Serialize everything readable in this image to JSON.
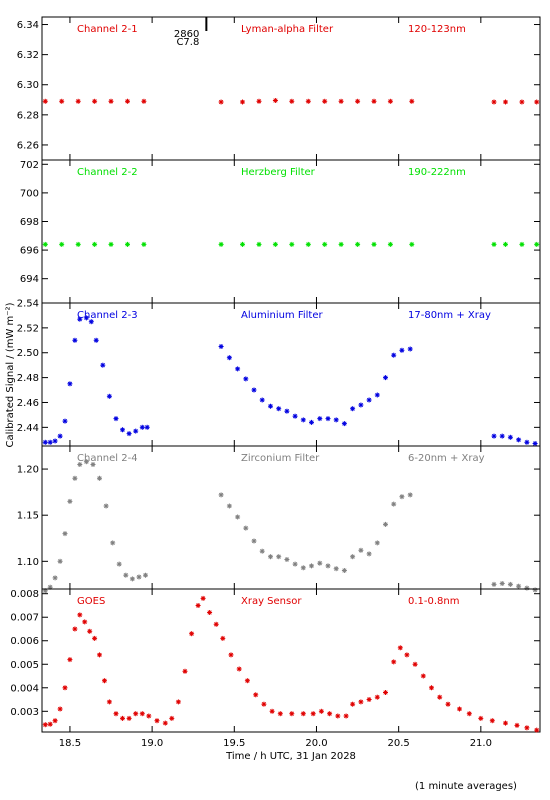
{
  "chart_data": [
    {
      "type": "scatter",
      "panel_labels": [
        "Channel 2-1",
        "Lyman-alpha Filter",
        "120-123nm"
      ],
      "color": "#e00000",
      "ylim": [
        6.25,
        6.345
      ],
      "yticks": [
        "6.26",
        "6.28",
        "6.30",
        "6.32",
        "6.34"
      ],
      "yvals": [
        6.26,
        6.28,
        6.3,
        6.32,
        6.34
      ],
      "annotation": {
        "lines": [
          "2860",
          "C7.8"
        ],
        "x": 19.33
      },
      "points": [
        [
          18.35,
          6.289
        ],
        [
          18.45,
          6.289
        ],
        [
          18.55,
          6.289
        ],
        [
          18.65,
          6.289
        ],
        [
          18.75,
          6.289
        ],
        [
          18.85,
          6.289
        ],
        [
          18.95,
          6.289
        ],
        [
          19.42,
          6.2885
        ],
        [
          19.55,
          6.2885
        ],
        [
          19.65,
          6.289
        ],
        [
          19.75,
          6.2895
        ],
        [
          19.85,
          6.289
        ],
        [
          19.95,
          6.289
        ],
        [
          20.05,
          6.289
        ],
        [
          20.15,
          6.289
        ],
        [
          20.25,
          6.289
        ],
        [
          20.35,
          6.289
        ],
        [
          20.45,
          6.289
        ],
        [
          20.58,
          6.289
        ],
        [
          21.08,
          6.2885
        ],
        [
          21.15,
          6.2885
        ],
        [
          21.25,
          6.2885
        ],
        [
          21.34,
          6.2885
        ]
      ]
    },
    {
      "type": "scatter",
      "panel_labels": [
        "Channel 2-2",
        "Herzberg Filter",
        "190-222nm"
      ],
      "color": "#00e000",
      "ylim": [
        692.3,
        702.3
      ],
      "yticks": [
        "694",
        "696",
        "698",
        "700",
        "702"
      ],
      "yvals": [
        694,
        696,
        698,
        700,
        702
      ],
      "points": [
        [
          18.35,
          696.4
        ],
        [
          18.45,
          696.4
        ],
        [
          18.55,
          696.4
        ],
        [
          18.65,
          696.4
        ],
        [
          18.75,
          696.4
        ],
        [
          18.85,
          696.4
        ],
        [
          18.95,
          696.4
        ],
        [
          19.42,
          696.4
        ],
        [
          19.55,
          696.4
        ],
        [
          19.65,
          696.4
        ],
        [
          19.75,
          696.4
        ],
        [
          19.85,
          696.4
        ],
        [
          19.95,
          696.4
        ],
        [
          20.05,
          696.4
        ],
        [
          20.15,
          696.4
        ],
        [
          20.25,
          696.4
        ],
        [
          20.35,
          696.4
        ],
        [
          20.45,
          696.4
        ],
        [
          20.58,
          696.4
        ],
        [
          21.08,
          696.4
        ],
        [
          21.15,
          696.4
        ],
        [
          21.25,
          696.4
        ],
        [
          21.34,
          696.4
        ]
      ]
    },
    {
      "type": "scatter",
      "panel_labels": [
        "Channel 2-3",
        "Aluminium Filter",
        "17-80nm + Xray"
      ],
      "color": "#0000e0",
      "ylim": [
        2.425,
        2.54
      ],
      "yticks": [
        "2.44",
        "2.46",
        "2.48",
        "2.50",
        "2.52",
        "2.54"
      ],
      "yvals": [
        2.44,
        2.46,
        2.48,
        2.5,
        2.52,
        2.54
      ],
      "points": [
        [
          18.35,
          2.428
        ],
        [
          18.38,
          2.428
        ],
        [
          18.41,
          2.429
        ],
        [
          18.44,
          2.433
        ],
        [
          18.47,
          2.445
        ],
        [
          18.5,
          2.475
        ],
        [
          18.53,
          2.51
        ],
        [
          18.56,
          2.527
        ],
        [
          18.6,
          2.528
        ],
        [
          18.63,
          2.525
        ],
        [
          18.66,
          2.51
        ],
        [
          18.7,
          2.49
        ],
        [
          18.74,
          2.465
        ],
        [
          18.78,
          2.447
        ],
        [
          18.82,
          2.438
        ],
        [
          18.86,
          2.435
        ],
        [
          18.9,
          2.437
        ],
        [
          18.94,
          2.44
        ],
        [
          18.97,
          2.44
        ],
        [
          19.42,
          2.505
        ],
        [
          19.47,
          2.496
        ],
        [
          19.52,
          2.487
        ],
        [
          19.57,
          2.479
        ],
        [
          19.62,
          2.47
        ],
        [
          19.67,
          2.462
        ],
        [
          19.72,
          2.457
        ],
        [
          19.77,
          2.455
        ],
        [
          19.82,
          2.453
        ],
        [
          19.87,
          2.449
        ],
        [
          19.92,
          2.446
        ],
        [
          19.97,
          2.444
        ],
        [
          20.02,
          2.447
        ],
        [
          20.07,
          2.447
        ],
        [
          20.12,
          2.446
        ],
        [
          20.17,
          2.443
        ],
        [
          20.22,
          2.455
        ],
        [
          20.27,
          2.458
        ],
        [
          20.32,
          2.462
        ],
        [
          20.37,
          2.466
        ],
        [
          20.42,
          2.48
        ],
        [
          20.47,
          2.498
        ],
        [
          20.52,
          2.502
        ],
        [
          20.57,
          2.503
        ],
        [
          21.08,
          2.433
        ],
        [
          21.13,
          2.433
        ],
        [
          21.18,
          2.432
        ],
        [
          21.23,
          2.43
        ],
        [
          21.28,
          2.428
        ],
        [
          21.33,
          2.427
        ]
      ]
    },
    {
      "type": "scatter",
      "panel_labels": [
        "Channel 2-4",
        "Zirconium Filter",
        "6-20nm + Xray"
      ],
      "color": "#808080",
      "ylim": [
        1.07,
        1.225
      ],
      "yticks": [
        "1.10",
        "1.15",
        "1.20"
      ],
      "yvals": [
        1.1,
        1.15,
        1.2
      ],
      "points": [
        [
          18.35,
          1.068
        ],
        [
          18.38,
          1.072
        ],
        [
          18.41,
          1.082
        ],
        [
          18.44,
          1.1
        ],
        [
          18.47,
          1.13
        ],
        [
          18.5,
          1.165
        ],
        [
          18.53,
          1.19
        ],
        [
          18.56,
          1.205
        ],
        [
          18.6,
          1.208
        ],
        [
          18.64,
          1.205
        ],
        [
          18.68,
          1.19
        ],
        [
          18.72,
          1.16
        ],
        [
          18.76,
          1.12
        ],
        [
          18.8,
          1.097
        ],
        [
          18.84,
          1.085
        ],
        [
          18.88,
          1.081
        ],
        [
          18.92,
          1.083
        ],
        [
          18.96,
          1.085
        ],
        [
          19.42,
          1.172
        ],
        [
          19.47,
          1.16
        ],
        [
          19.52,
          1.148
        ],
        [
          19.57,
          1.136
        ],
        [
          19.62,
          1.122
        ],
        [
          19.67,
          1.111
        ],
        [
          19.72,
          1.105
        ],
        [
          19.77,
          1.105
        ],
        [
          19.82,
          1.102
        ],
        [
          19.87,
          1.097
        ],
        [
          19.92,
          1.093
        ],
        [
          19.97,
          1.095
        ],
        [
          20.02,
          1.098
        ],
        [
          20.07,
          1.095
        ],
        [
          20.12,
          1.092
        ],
        [
          20.17,
          1.09
        ],
        [
          20.22,
          1.105
        ],
        [
          20.27,
          1.112
        ],
        [
          20.32,
          1.108
        ],
        [
          20.37,
          1.12
        ],
        [
          20.42,
          1.14
        ],
        [
          20.47,
          1.162
        ],
        [
          20.52,
          1.17
        ],
        [
          20.57,
          1.172
        ],
        [
          21.08,
          1.075
        ],
        [
          21.13,
          1.076
        ],
        [
          21.18,
          1.075
        ],
        [
          21.23,
          1.073
        ],
        [
          21.28,
          1.071
        ],
        [
          21.33,
          1.069
        ]
      ]
    },
    {
      "type": "scatter",
      "panel_labels": [
        "GOES",
        "Xray Sensor",
        "0.1-0.8nm"
      ],
      "color": "#e00000",
      "ylim": [
        0.00212,
        0.0082
      ],
      "yticks": [
        "0.003",
        "0.004",
        "0.005",
        "0.006",
        "0.007",
        "0.008"
      ],
      "yvals": [
        0.003,
        0.004,
        0.005,
        0.006,
        0.007,
        0.008
      ],
      "points": [
        [
          18.35,
          0.00243
        ],
        [
          18.38,
          0.00245
        ],
        [
          18.41,
          0.0026
        ],
        [
          18.44,
          0.0031
        ],
        [
          18.47,
          0.004
        ],
        [
          18.5,
          0.0052
        ],
        [
          18.53,
          0.0065
        ],
        [
          18.56,
          0.0071
        ],
        [
          18.59,
          0.0068
        ],
        [
          18.62,
          0.0064
        ],
        [
          18.65,
          0.0061
        ],
        [
          18.68,
          0.0054
        ],
        [
          18.71,
          0.0043
        ],
        [
          18.74,
          0.0034
        ],
        [
          18.78,
          0.0029
        ],
        [
          18.82,
          0.0027
        ],
        [
          18.86,
          0.0027
        ],
        [
          18.9,
          0.0029
        ],
        [
          18.94,
          0.0029
        ],
        [
          18.98,
          0.0028
        ],
        [
          19.03,
          0.0026
        ],
        [
          19.08,
          0.0025
        ],
        [
          19.12,
          0.0027
        ],
        [
          19.16,
          0.0034
        ],
        [
          19.2,
          0.0047
        ],
        [
          19.24,
          0.0063
        ],
        [
          19.28,
          0.0075
        ],
        [
          19.31,
          0.0078
        ],
        [
          19.35,
          0.0072
        ],
        [
          19.39,
          0.0067
        ],
        [
          19.43,
          0.0061
        ],
        [
          19.48,
          0.0054
        ],
        [
          19.53,
          0.0048
        ],
        [
          19.58,
          0.0043
        ],
        [
          19.63,
          0.0037
        ],
        [
          19.68,
          0.0033
        ],
        [
          19.73,
          0.003
        ],
        [
          19.78,
          0.0029
        ],
        [
          19.85,
          0.0029
        ],
        [
          19.92,
          0.0029
        ],
        [
          19.98,
          0.0029
        ],
        [
          20.03,
          0.003
        ],
        [
          20.08,
          0.0029
        ],
        [
          20.13,
          0.0028
        ],
        [
          20.18,
          0.0028
        ],
        [
          20.22,
          0.0033
        ],
        [
          20.27,
          0.0034
        ],
        [
          20.32,
          0.0035
        ],
        [
          20.37,
          0.0036
        ],
        [
          20.42,
          0.0038
        ],
        [
          20.47,
          0.0051
        ],
        [
          20.51,
          0.0057
        ],
        [
          20.55,
          0.0054
        ],
        [
          20.6,
          0.005
        ],
        [
          20.65,
          0.0045
        ],
        [
          20.7,
          0.004
        ],
        [
          20.75,
          0.0036
        ],
        [
          20.8,
          0.0033
        ],
        [
          20.87,
          0.0031
        ],
        [
          20.93,
          0.0029
        ],
        [
          21.0,
          0.0027
        ],
        [
          21.07,
          0.0026
        ],
        [
          21.15,
          0.0025
        ],
        [
          21.22,
          0.0024
        ],
        [
          21.28,
          0.0023
        ],
        [
          21.34,
          0.0022
        ]
      ]
    }
  ],
  "x_axis": {
    "range": [
      18.33,
      21.36
    ],
    "ticks": [
      "18.5",
      "19.0",
      "19.5",
      "20.0",
      "20.5",
      "21.0"
    ],
    "tick_values": [
      18.5,
      19.0,
      19.5,
      20.0,
      20.5,
      21.0
    ],
    "label": "Time / h UTC, 31 Jan 2028"
  },
  "y_axis_label": "Calibrated Signal / (mW m⁻²)",
  "footnote": "(1 minute averages)"
}
